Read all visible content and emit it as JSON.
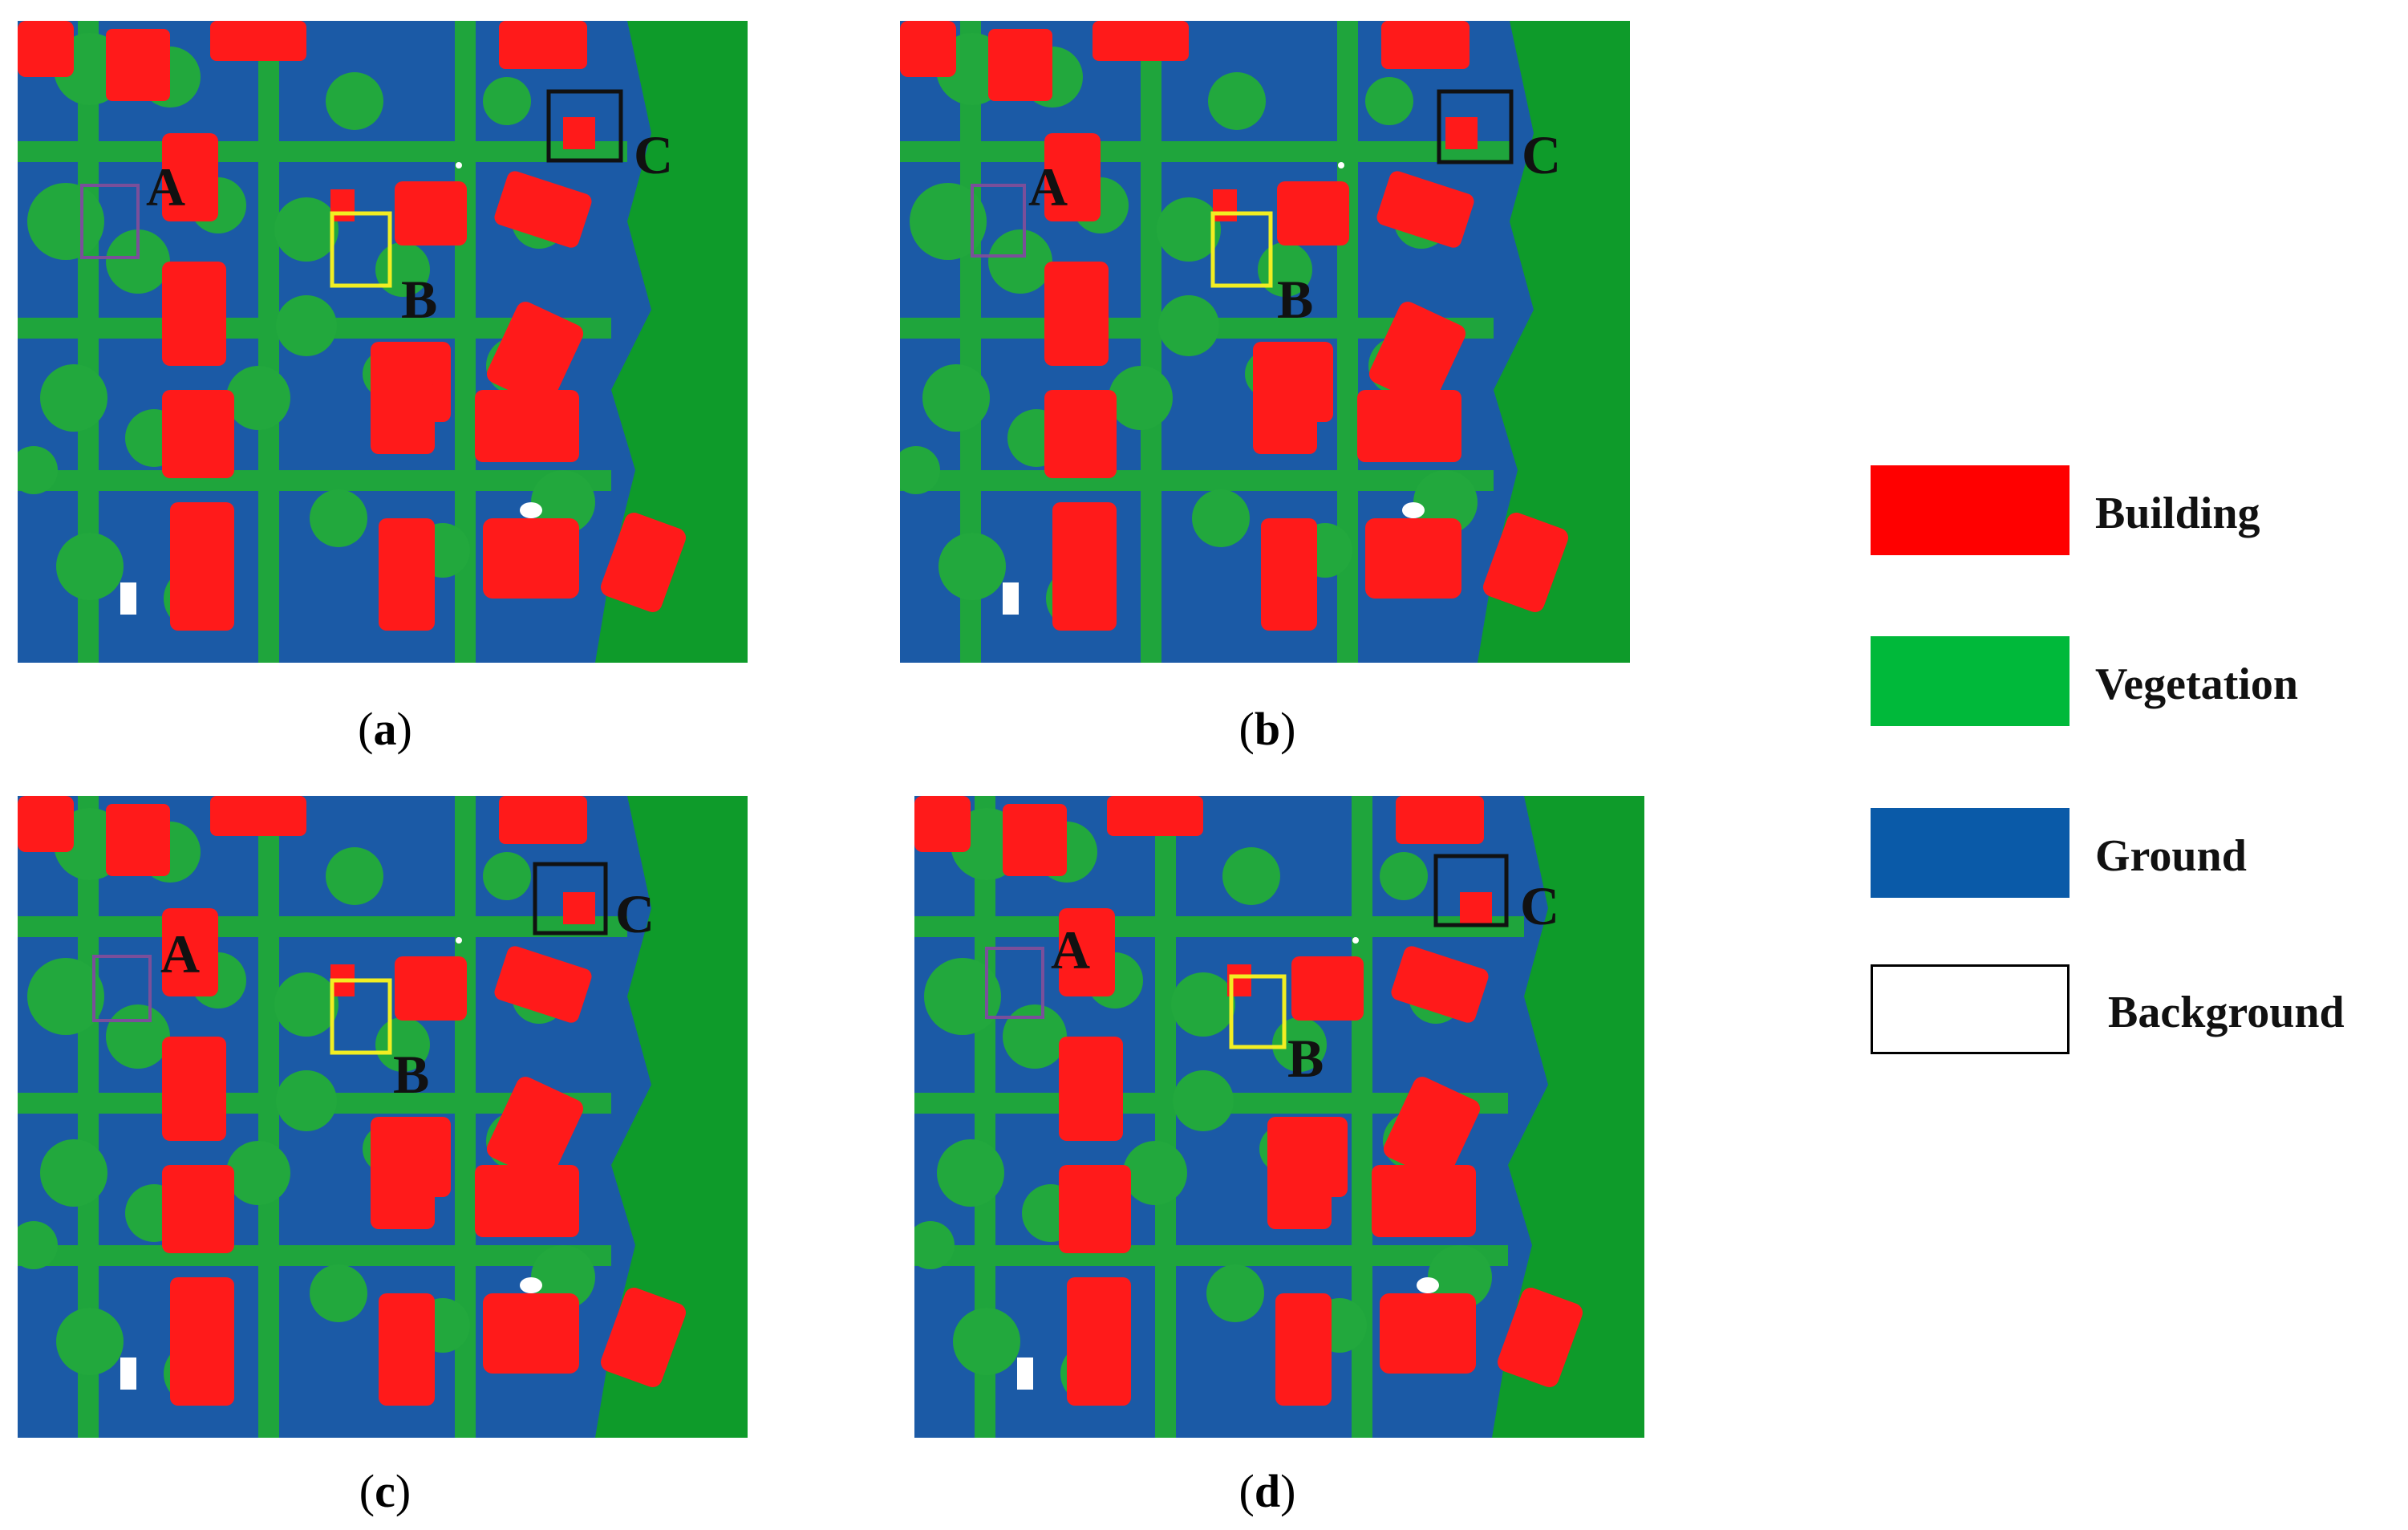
{
  "panels": [
    {
      "id": "a",
      "caption_letter": "a"
    },
    {
      "id": "b",
      "caption_letter": "b"
    },
    {
      "id": "c",
      "caption_letter": "c"
    },
    {
      "id": "d",
      "caption_letter": "d"
    }
  ],
  "region_labels": {
    "a": "A",
    "b": "B",
    "c": "C"
  },
  "legend": {
    "items": [
      {
        "label": "Building",
        "color": "#ff0000"
      },
      {
        "label": "Vegetation",
        "color": "#00b93a"
      },
      {
        "label": "Ground",
        "color": "#0a5aa8"
      },
      {
        "label": "Background",
        "color": "#ffffff"
      }
    ]
  },
  "colors": {
    "building": "#ff0000",
    "vegetation": "#11a83a",
    "ground": "#1b5aa6",
    "background": "#ffffff",
    "box_a": "#7a4f9a",
    "box_b": "#f2ee22",
    "box_c": "#111111"
  }
}
